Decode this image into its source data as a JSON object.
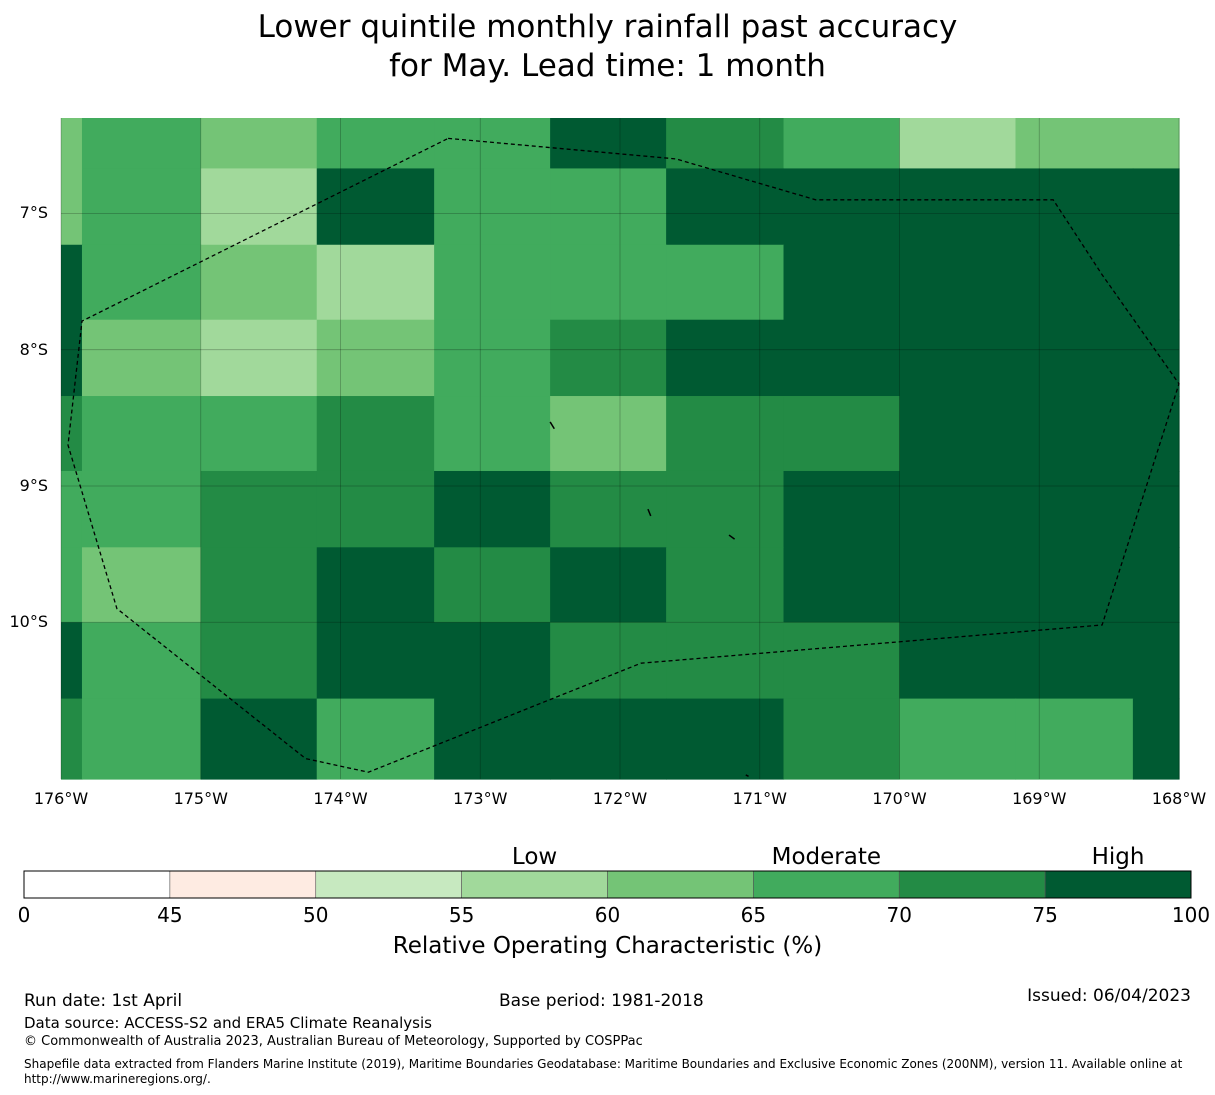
{
  "title": {
    "line1": "Lower quintile monthly rainfall past accuracy",
    "line2": "for May. Lead time: 1 month"
  },
  "map": {
    "lon_range": [
      -176,
      -168
    ],
    "lat_range": [
      -11.15,
      -6.3
    ],
    "lon_edges": [
      -176,
      -175.85,
      -175,
      -174.17,
      -173.33,
      -172.5,
      -171.67,
      -170.83,
      -170,
      -169.17,
      -168.33,
      -168
    ],
    "lat_edges": [
      -6.3,
      -6.67,
      -7.23,
      -7.78,
      -8.34,
      -8.89,
      -9.45,
      -10.0,
      -10.56,
      -11.15
    ],
    "grid": [
      [
        60,
        65,
        60,
        65,
        65,
        75,
        70,
        65,
        55,
        60,
        60
      ],
      [
        60,
        65,
        55,
        75,
        65,
        65,
        75,
        75,
        80,
        75,
        80
      ],
      [
        75,
        65,
        60,
        55,
        65,
        65,
        65,
        75,
        80,
        80,
        80
      ],
      [
        75,
        60,
        55,
        60,
        65,
        70,
        75,
        80,
        75,
        80,
        80
      ],
      [
        70,
        65,
        65,
        70,
        65,
        60,
        70,
        70,
        75,
        75,
        80
      ],
      [
        65,
        65,
        70,
        70,
        75,
        70,
        70,
        75,
        75,
        80,
        80
      ],
      [
        65,
        60,
        70,
        75,
        70,
        75,
        70,
        80,
        80,
        75,
        75
      ],
      [
        75,
        65,
        70,
        75,
        75,
        70,
        70,
        70,
        75,
        80,
        75
      ],
      [
        70,
        65,
        75,
        65,
        75,
        75,
        80,
        70,
        65,
        65,
        75
      ]
    ],
    "eez_boundary": [
      [
        -173.23,
        -6.45
      ],
      [
        -171.6,
        -6.6
      ],
      [
        -170.6,
        -6.9
      ],
      [
        -168.9,
        -6.9
      ],
      [
        -168.55,
        -7.45
      ],
      [
        -168.0,
        -8.25
      ],
      [
        -168.55,
        -10.02
      ],
      [
        -171.85,
        -10.3
      ],
      [
        -173.8,
        -11.1
      ],
      [
        -174.25,
        -11.0
      ],
      [
        -175.6,
        -9.9
      ],
      [
        -175.95,
        -8.7
      ],
      [
        -175.85,
        -7.79
      ],
      [
        -173.23,
        -6.45
      ]
    ],
    "islands": [
      [
        [
          -172.5,
          -8.53
        ],
        [
          -172.47,
          -8.58
        ]
      ],
      [
        [
          -171.8,
          -9.17
        ],
        [
          -171.78,
          -9.22
        ]
      ],
      [
        [
          -171.22,
          -9.36
        ],
        [
          -171.18,
          -9.39
        ]
      ],
      [
        [
          -171.1,
          -11.12
        ],
        [
          -171.08,
          -11.13
        ]
      ]
    ],
    "x_ticks": [
      {
        "value": -176,
        "label": "176°W"
      },
      {
        "value": -175,
        "label": "175°W"
      },
      {
        "value": -174,
        "label": "174°W"
      },
      {
        "value": -173,
        "label": "173°W"
      },
      {
        "value": -172,
        "label": "172°W"
      },
      {
        "value": -171,
        "label": "171°W"
      },
      {
        "value": -170,
        "label": "170°W"
      },
      {
        "value": -169,
        "label": "169°W"
      },
      {
        "value": -168,
        "label": "168°W"
      }
    ],
    "y_ticks": [
      {
        "value": -7,
        "label": "7°S"
      },
      {
        "value": -8,
        "label": "8°S"
      },
      {
        "value": -9,
        "label": "9°S"
      },
      {
        "value": -10,
        "label": "10°S"
      }
    ]
  },
  "colorbar": {
    "bounds": [
      0,
      45,
      50,
      55,
      60,
      65,
      70,
      75,
      100
    ],
    "colors": [
      "#ffffff",
      "#feebe2",
      "#c7e9c0",
      "#a1d99b",
      "#74c476",
      "#41ab5d",
      "#238b45",
      "#005a32"
    ],
    "tick_labels": [
      "0",
      "45",
      "50",
      "55",
      "60",
      "65",
      "70",
      "75",
      "100"
    ],
    "categories": [
      {
        "label": "Low",
        "center": 57.5
      },
      {
        "label": "Moderate",
        "center": 67.5
      },
      {
        "label": "High",
        "center": 87.5
      }
    ],
    "title": "Relative Operating Characteristic (%)"
  },
  "footer": {
    "run_date": "Run date: 1st April",
    "base_period": "Base period: 1981-2018",
    "issued": "Issued: 06/04/2023",
    "data_source": "Data source: ACCESS-S2 and ERA5 Climate Reanalysis",
    "copyright": "© Commonwealth of Australia 2023, Australian Bureau of Meteorology, Supported by COSPPac",
    "shapefile_1": "Shapefile data extracted from Flanders Marine Institute (2019), Maritime Boundaries Geodatabase: Maritime Boundaries and Exclusive Economic Zones (200NM), version 11. Available online at",
    "shapefile_2": "http://www.marineregions.org/."
  }
}
